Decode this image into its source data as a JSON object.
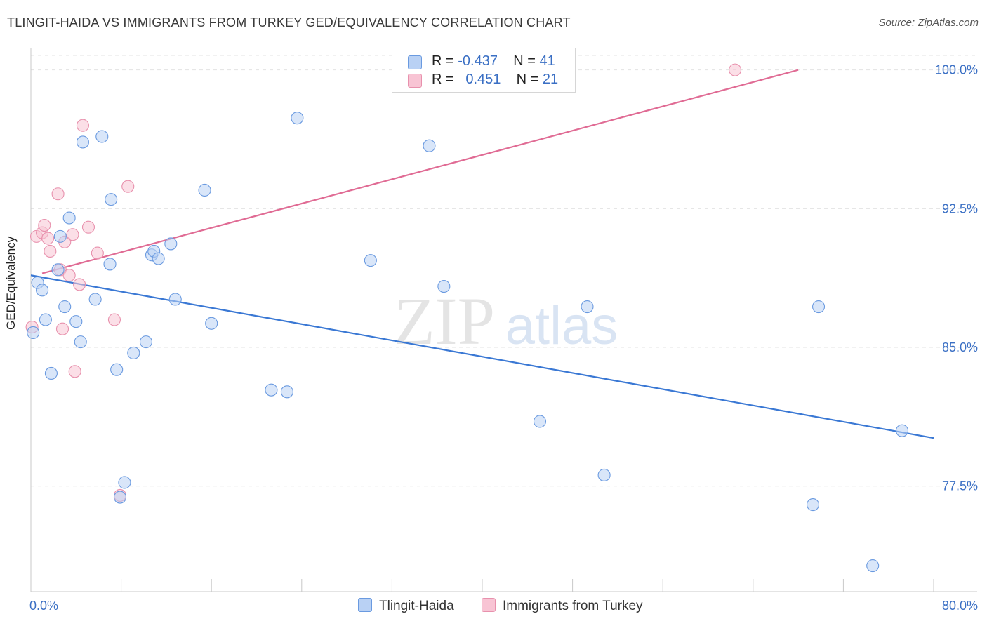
{
  "title": "TLINGIT-HAIDA VS IMMIGRANTS FROM TURKEY GED/EQUIVALENCY CORRELATION CHART",
  "source": "Source: ZipAtlas.com",
  "watermark": {
    "zip": "ZIP",
    "atlas": "atlas"
  },
  "legend": {
    "rows": [
      {
        "r_label": "R =",
        "r_value": "-0.437",
        "n_label": "N =",
        "n_value": "41"
      },
      {
        "r_label": "R =",
        "r_value": "0.451",
        "n_label": "N =",
        "n_value": "21"
      }
    ]
  },
  "chart_data": {
    "type": "scatter",
    "ylabel": "GED/Equivalency",
    "xlim": [
      0,
      80
    ],
    "ylim": [
      71.8,
      101.2
    ],
    "x_tick_labels": [
      "0.0%",
      "80.0%"
    ],
    "y_ticks": [
      77.5,
      85.0,
      92.5,
      100.0
    ],
    "y_tick_labels": [
      "77.5%",
      "85.0%",
      "92.5%",
      "100.0%"
    ],
    "grid": true,
    "legend_position": "top-center",
    "colors": {
      "blue": "#3a78d4",
      "blue_fill": "#b9d1f4",
      "pink": "#e06b94",
      "pink_fill": "#f8c4d4",
      "tick_label": "#3a6fc4"
    },
    "series": [
      {
        "name": "Tlingit-Haida",
        "color": "#3a78d4",
        "trend": [
          [
            0,
            88.9
          ],
          [
            80,
            80.1
          ]
        ],
        "points": [
          [
            0.2,
            85.8
          ],
          [
            0.6,
            88.5
          ],
          [
            1.0,
            88.1
          ],
          [
            1.3,
            86.5
          ],
          [
            1.8,
            83.6
          ],
          [
            2.4,
            89.2
          ],
          [
            2.6,
            91.0
          ],
          [
            3.0,
            87.2
          ],
          [
            3.4,
            92.0
          ],
          [
            4.0,
            86.4
          ],
          [
            4.4,
            85.3
          ],
          [
            4.6,
            96.1
          ],
          [
            5.7,
            87.6
          ],
          [
            6.3,
            96.4
          ],
          [
            7.0,
            89.5
          ],
          [
            7.1,
            93.0
          ],
          [
            7.6,
            83.8
          ],
          [
            7.9,
            76.9
          ],
          [
            8.3,
            77.7
          ],
          [
            9.1,
            84.7
          ],
          [
            10.2,
            85.3
          ],
          [
            10.7,
            90.0
          ],
          [
            10.9,
            90.2
          ],
          [
            11.3,
            89.8
          ],
          [
            12.4,
            90.6
          ],
          [
            12.8,
            87.6
          ],
          [
            15.4,
            93.5
          ],
          [
            16.0,
            86.3
          ],
          [
            21.3,
            82.7
          ],
          [
            22.7,
            82.6
          ],
          [
            23.6,
            97.4
          ],
          [
            30.1,
            89.7
          ],
          [
            35.3,
            95.9
          ],
          [
            36.6,
            88.3
          ],
          [
            45.1,
            81.0
          ],
          [
            49.3,
            87.2
          ],
          [
            50.8,
            78.1
          ],
          [
            69.3,
            76.5
          ],
          [
            69.8,
            87.2
          ],
          [
            74.6,
            73.2
          ],
          [
            77.2,
            80.5
          ]
        ]
      },
      {
        "name": "Immigrants from Turkey",
        "color": "#e06b94",
        "trend": [
          [
            1.0,
            89.0
          ],
          [
            68.0,
            100.0
          ]
        ],
        "points": [
          [
            0.1,
            86.1
          ],
          [
            0.5,
            91.0
          ],
          [
            1.0,
            91.2
          ],
          [
            1.2,
            91.6
          ],
          [
            1.5,
            90.9
          ],
          [
            1.7,
            90.2
          ],
          [
            2.4,
            93.3
          ],
          [
            2.6,
            89.2
          ],
          [
            2.8,
            86.0
          ],
          [
            3.0,
            90.7
          ],
          [
            3.4,
            88.9
          ],
          [
            3.7,
            91.1
          ],
          [
            3.9,
            83.7
          ],
          [
            4.3,
            88.4
          ],
          [
            4.6,
            97.0
          ],
          [
            5.1,
            91.5
          ],
          [
            5.9,
            90.1
          ],
          [
            7.4,
            86.5
          ],
          [
            7.9,
            77.0
          ],
          [
            8.6,
            93.7
          ],
          [
            62.4,
            100.0
          ]
        ]
      }
    ]
  }
}
